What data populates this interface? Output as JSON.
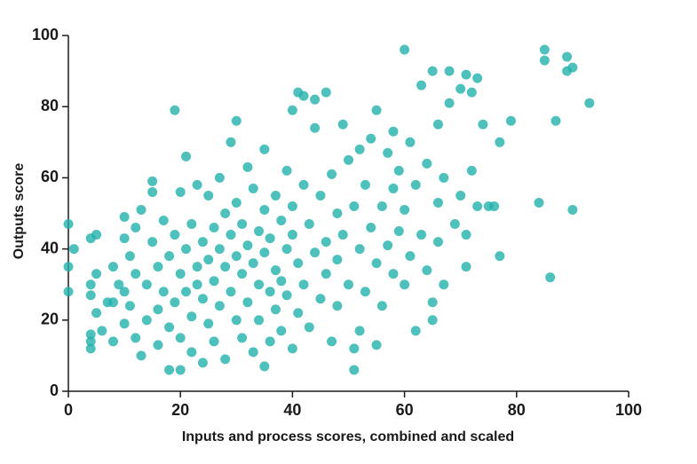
{
  "chart_data": {
    "type": "scatter",
    "xlabel": "Inputs and process scores, combined and scaled",
    "ylabel": "Outputs score",
    "xlim": [
      0,
      100
    ],
    "ylim": [
      0,
      100
    ],
    "xticks": [
      0,
      20,
      40,
      60,
      80,
      100
    ],
    "yticks": [
      0,
      20,
      40,
      60,
      80,
      100
    ],
    "color": "#22b1ab",
    "x": [
      0,
      0,
      0,
      1,
      4,
      4,
      4,
      4,
      4,
      4,
      5,
      5,
      5,
      6,
      7,
      8,
      8,
      8,
      9,
      10,
      10,
      10,
      10,
      11,
      11,
      12,
      12,
      12,
      13,
      13,
      14,
      14,
      15,
      15,
      15,
      16,
      16,
      16,
      17,
      17,
      18,
      18,
      18,
      19,
      19,
      19,
      20,
      20,
      20,
      20,
      21,
      21,
      21,
      22,
      22,
      22,
      23,
      23,
      23,
      24,
      24,
      24,
      25,
      25,
      25,
      26,
      26,
      26,
      27,
      27,
      27,
      28,
      28,
      28,
      29,
      29,
      29,
      30,
      30,
      30,
      30,
      31,
      31,
      31,
      32,
      32,
      32,
      33,
      33,
      33,
      34,
      34,
      34,
      35,
      35,
      35,
      35,
      36,
      36,
      36,
      37,
      37,
      37,
      38,
      38,
      38,
      39,
      39,
      39,
      40,
      40,
      40,
      40,
      41,
      41,
      41,
      42,
      42,
      42,
      43,
      43,
      44,
      44,
      44,
      45,
      45,
      46,
      46,
      46,
      47,
      47,
      48,
      48,
      48,
      49,
      49,
      50,
      50,
      51,
      51,
      51,
      52,
      52,
      52,
      53,
      53,
      54,
      54,
      55,
      55,
      55,
      56,
      56,
      57,
      57,
      58,
      58,
      58,
      59,
      59,
      60,
      60,
      60,
      61,
      61,
      62,
      62,
      63,
      63,
      64,
      64,
      65,
      65,
      65,
      66,
      66,
      66,
      67,
      67,
      68,
      68,
      69,
      70,
      70,
      71,
      71,
      71,
      72,
      72,
      73,
      73,
      74,
      75,
      76,
      77,
      77,
      79,
      84,
      85,
      85,
      86,
      87,
      89,
      89,
      90,
      90,
      93
    ],
    "values": [
      47,
      35,
      28,
      40,
      14,
      12,
      16,
      30,
      27,
      43,
      44,
      33,
      22,
      17,
      25,
      25,
      14,
      35,
      30,
      28,
      19,
      43,
      49,
      38,
      24,
      15,
      46,
      33,
      10,
      51,
      20,
      30,
      59,
      56,
      42,
      35,
      23,
      13,
      28,
      48,
      6,
      38,
      18,
      79,
      44,
      25,
      6,
      33,
      56,
      15,
      66,
      40,
      28,
      21,
      47,
      11,
      35,
      58,
      30,
      8,
      42,
      26,
      55,
      19,
      37,
      46,
      14,
      31,
      60,
      24,
      40,
      50,
      9,
      35,
      70,
      28,
      44,
      76,
      20,
      38,
      53,
      15,
      47,
      33,
      63,
      25,
      41,
      57,
      11,
      36,
      45,
      30,
      20,
      7,
      68,
      51,
      39,
      28,
      43,
      14,
      55,
      34,
      23,
      48,
      31,
      17,
      62,
      40,
      27,
      79,
      44,
      12,
      52,
      84,
      36,
      22,
      83,
      58,
      30,
      47,
      18,
      82,
      74,
      39,
      55,
      26,
      84,
      42,
      33,
      61,
      14,
      50,
      37,
      24,
      75,
      44,
      65,
      30,
      6,
      52,
      12,
      68,
      40,
      17,
      58,
      28,
      71,
      46,
      79,
      36,
      13,
      52,
      24,
      67,
      41,
      73,
      33,
      57,
      62,
      45,
      96,
      30,
      51,
      70,
      38,
      17,
      58,
      86,
      44,
      64,
      34,
      90,
      25,
      20,
      75,
      53,
      42,
      60,
      30,
      90,
      81,
      47,
      85,
      55,
      89,
      44,
      35,
      84,
      62,
      88,
      52,
      75,
      52,
      52,
      70,
      38,
      76,
      53,
      96,
      93,
      32,
      76,
      94,
      90,
      91,
      51,
      81
    ]
  }
}
